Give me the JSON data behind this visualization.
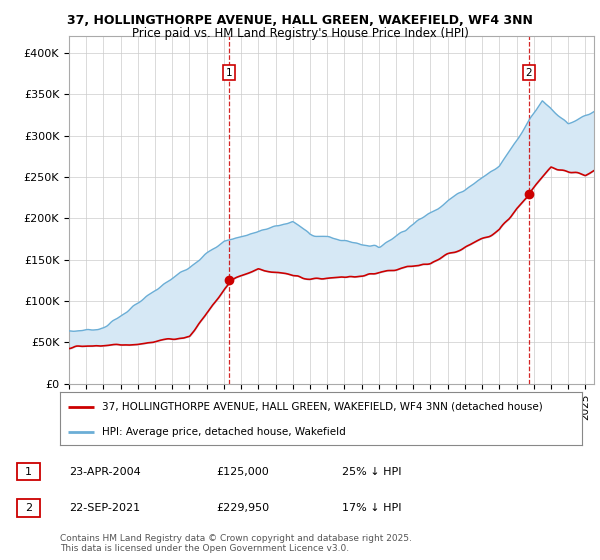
{
  "title_line1": "37, HOLLINGTHORPE AVENUE, HALL GREEN, WAKEFIELD, WF4 3NN",
  "title_line2": "Price paid vs. HM Land Registry's House Price Index (HPI)",
  "ylabel_ticks": [
    "£0",
    "£50K",
    "£100K",
    "£150K",
    "£200K",
    "£250K",
    "£300K",
    "£350K",
    "£400K"
  ],
  "ylabel_values": [
    0,
    50000,
    100000,
    150000,
    200000,
    250000,
    300000,
    350000,
    400000
  ],
  "ylim": [
    0,
    420000
  ],
  "hpi_color": "#6baed6",
  "hpi_fill_color": "#d6e8f5",
  "price_color": "#cc0000",
  "marker_color": "#cc0000",
  "vline_color": "#cc0000",
  "legend_label_price": "37, HOLLINGTHORPE AVENUE, HALL GREEN, WAKEFIELD, WF4 3NN (detached house)",
  "legend_label_hpi": "HPI: Average price, detached house, Wakefield",
  "point1_label": "1",
  "point1_date": "23-APR-2004",
  "point1_price": "£125,000",
  "point1_hpi": "25% ↓ HPI",
  "point1_x": 2004.3,
  "point1_y": 125000,
  "point2_label": "2",
  "point2_date": "22-SEP-2021",
  "point2_price": "£229,950",
  "point2_hpi": "17% ↓ HPI",
  "point2_x": 2021.72,
  "point2_y": 229950,
  "copyright_text": "Contains HM Land Registry data © Crown copyright and database right 2025.\nThis data is licensed under the Open Government Licence v3.0.",
  "bg_color": "#ffffff",
  "plot_bg_color": "#ffffff",
  "grid_color": "#cccccc",
  "xmin": 1995,
  "xmax": 2025.5
}
